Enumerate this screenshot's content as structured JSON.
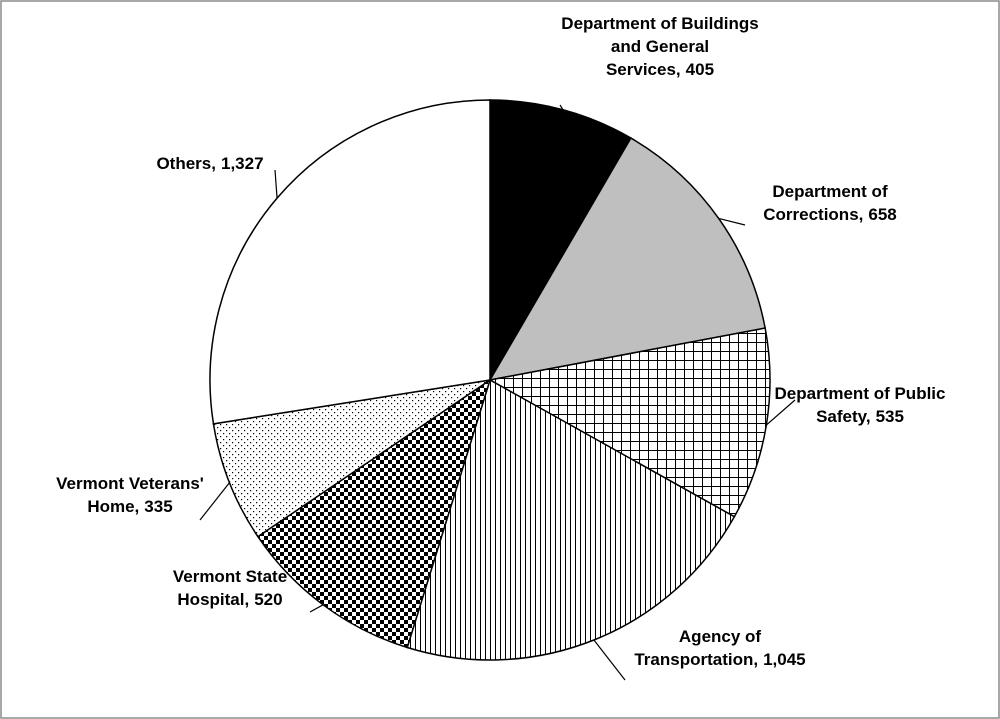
{
  "chart_data": {
    "type": "pie",
    "categories": [
      "Department of Buildings and General Services,",
      "Department of Corrections,",
      "Department of Public Safety,",
      "Agency of Transportation,",
      "Vermont State Hospital,",
      "Vermont Veterans' Home,",
      "Others,"
    ],
    "values": [
      405,
      658,
      535,
      1045,
      520,
      335,
      1327
    ],
    "value_labels": [
      "405",
      "658",
      "535",
      "1,045",
      "520",
      "335",
      "1,327"
    ],
    "colors": [
      "#000000",
      "#bfbfbf",
      "#ffffff",
      "#ffffff",
      "#ffffff",
      "#ffffff",
      "#ffffff"
    ],
    "patterns": [
      "solid",
      "solid",
      "grid",
      "vertical",
      "checker",
      "dots",
      "solid"
    ]
  }
}
